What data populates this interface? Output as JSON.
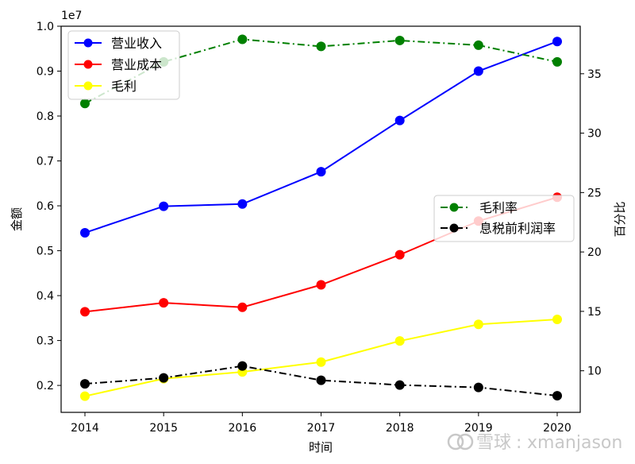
{
  "chart_data": {
    "type": "line",
    "x": [
      2014,
      2015,
      2016,
      2017,
      2018,
      2019,
      2020
    ],
    "xlabel": "时间",
    "ylabel_left": "金额",
    "ylabel_right": "百分比",
    "y_left_offset_label": "1e7",
    "ylim_left": [
      0.14,
      1.0
    ],
    "ylim_right": [
      6.5,
      39.0
    ],
    "y_left_ticks": [
      "0.2",
      "0.3",
      "0.4",
      "0.5",
      "0.6",
      "0.7",
      "0.8",
      "0.9",
      "1.0"
    ],
    "y_right_ticks": [
      "10",
      "15",
      "20",
      "25",
      "30",
      "35"
    ],
    "left_series": [
      {
        "name": "营业收入",
        "color": "#0000ff",
        "style": "solid",
        "values": [
          0.54,
          0.599,
          0.604,
          0.676,
          0.79,
          0.9,
          0.966
        ]
      },
      {
        "name": "营业成本",
        "color": "#ff0000",
        "style": "solid",
        "values": [
          0.364,
          0.384,
          0.374,
          0.424,
          0.491,
          0.566,
          0.619
        ]
      },
      {
        "name": "毛利",
        "color": "#ffff00",
        "style": "solid",
        "values": [
          0.176,
          0.215,
          0.23,
          0.252,
          0.299,
          0.336,
          0.347
        ]
      }
    ],
    "right_series": [
      {
        "name": "毛利率",
        "color": "#008000",
        "style": "dashdot",
        "values": [
          32.5,
          36.0,
          37.9,
          37.3,
          37.8,
          37.4,
          36.0
        ]
      },
      {
        "name": "息税前利润率",
        "color": "#000000",
        "style": "dashdot",
        "values": [
          8.9,
          9.4,
          10.4,
          9.2,
          8.8,
          8.6,
          7.9
        ]
      }
    ],
    "legend_left_position": "upper-left",
    "legend_right_position": "center-right",
    "grid": false
  },
  "watermark": {
    "brand": "雪球",
    "user": "xmanjason"
  }
}
